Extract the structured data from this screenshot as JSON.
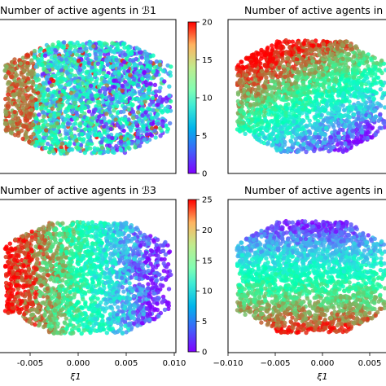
{
  "chart_data": [
    {
      "type": "scatter",
      "panel": "top-left",
      "title": "Number of active agents in ℬ1",
      "colorbar": {
        "range": [
          0,
          20
        ],
        "ticks": [
          "0",
          "5",
          "10",
          "15",
          "20"
        ],
        "colormap": "rainbow"
      },
      "xlabel": "",
      "ylabel": "",
      "xlim": [
        -0.01,
        0.01
      ],
      "pattern": "mostly mixed colors, warm (high) on the left edge and cyan/green speckle throughout"
    },
    {
      "type": "scatter",
      "panel": "top-right",
      "title": "Number of active agents in",
      "xlabel": "",
      "ylabel": "",
      "xlim": [
        -0.01,
        0.01
      ],
      "pattern": "warm (high) at top and left, blue/cyan (low) at bottom-right"
    },
    {
      "type": "scatter",
      "panel": "bottom-left",
      "title": "Number of active agents in ℬ3",
      "colorbar": {
        "range": [
          0,
          25
        ],
        "ticks": [
          "0",
          "5",
          "10",
          "15",
          "20",
          "25"
        ],
        "colormap": "rainbow"
      },
      "xlabel": "ξ1",
      "xlim": [
        -0.01,
        0.01
      ],
      "xticks": [
        "-0.005",
        "0.000",
        "0.005",
        "0.010"
      ],
      "pattern": "warm (high) on the left, blue (low) on the right"
    },
    {
      "type": "scatter",
      "panel": "bottom-right",
      "title": "Number of active agents in",
      "xlabel": "ξ1",
      "xlim": [
        -0.01,
        0.01
      ],
      "xticks": [
        "−0.010",
        "−0.005",
        "0.000",
        "0.005"
      ],
      "pattern": "blue (low) at top, red/orange (high) at bottom"
    }
  ]
}
